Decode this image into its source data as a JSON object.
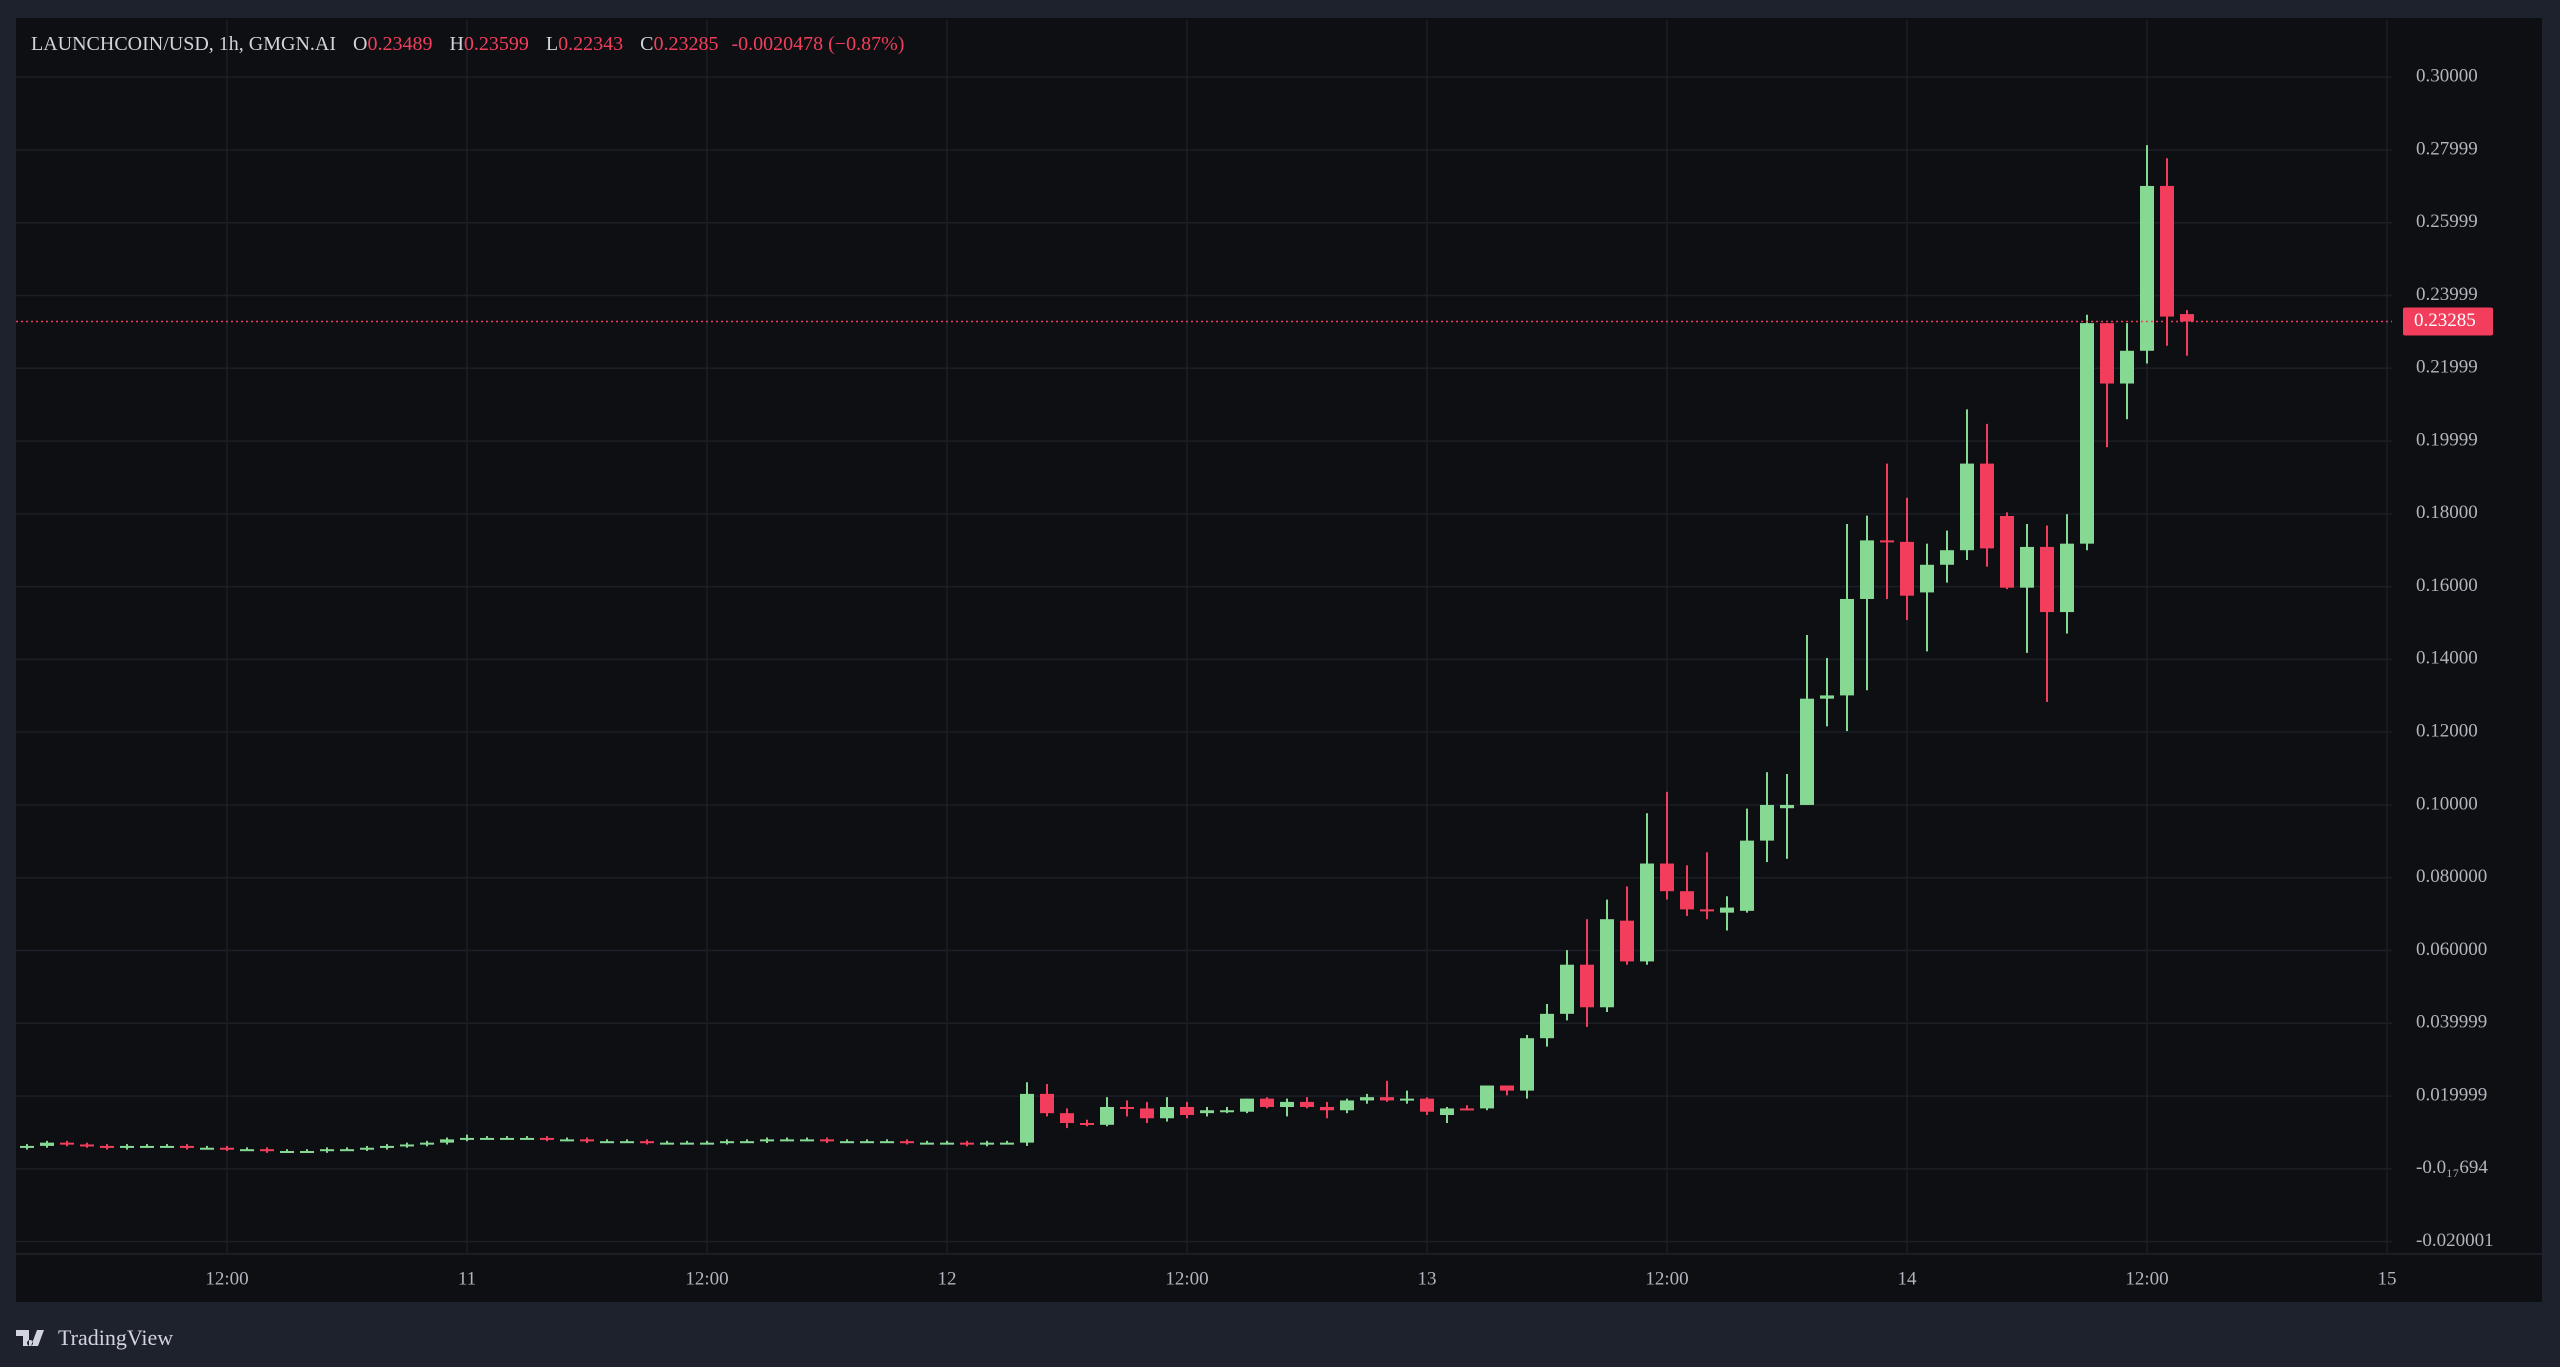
{
  "chart_data": {
    "type": "candlestick",
    "symbol": "LAUNCHCOIN/USD, 1h, GMGN.AI",
    "ohlc_labels": [
      "O",
      "H",
      "L",
      "C"
    ],
    "change": "-0.0020478 (−0.87%)",
    "up_color": "#86d993",
    "down_color": "#f23e5c",
    "grid": true,
    "xlim": [
      1.45,
      120.25
    ],
    "ylim": [
      -0.0234,
      0.3157
    ],
    "xticks": [
      {
        "value": 12,
        "label": "12:00"
      },
      {
        "value": 24,
        "label": "11"
      },
      {
        "value": 36,
        "label": "12:00"
      },
      {
        "value": 48,
        "label": "12"
      },
      {
        "value": 60,
        "label": "12:00"
      },
      {
        "value": 72,
        "label": "13"
      },
      {
        "value": 84,
        "label": "12:00"
      },
      {
        "value": 96,
        "label": "14"
      },
      {
        "value": 108,
        "label": "12:00"
      },
      {
        "value": 120,
        "label": "15"
      }
    ],
    "yticks": [
      {
        "value": 0.3,
        "label": "0.30000"
      },
      0.27999,
      0.25999,
      0.23999,
      0.21999,
      0.19999,
      {
        "value": 0.18,
        "label": "0.18000"
      },
      {
        "value": 0.16,
        "label": "0.16000"
      },
      {
        "value": 0.14,
        "label": "0.14000"
      },
      {
        "value": 0.12,
        "label": "0.12000"
      },
      {
        "value": 0.1,
        "label": "0.10000"
      },
      {
        "value": 0.08,
        "label": "0.080000"
      },
      {
        "value": 0.06,
        "label": "0.060000"
      },
      0.039999,
      0.019999,
      {
        "value": -6.94e-19,
        "label": "-0.0₁₇694"
      },
      -0.020001
    ],
    "x": [
      2,
      3,
      4,
      5,
      6,
      7,
      8,
      9,
      10,
      11,
      12,
      13,
      14,
      15,
      16,
      17,
      18,
      19,
      20,
      21,
      22,
      23,
      24,
      25,
      26,
      27,
      28,
      29,
      30,
      31,
      32,
      33,
      34,
      35,
      36,
      37,
      38,
      39,
      40,
      41,
      42,
      43,
      44,
      45,
      46,
      47,
      48,
      49,
      50,
      51,
      52,
      53,
      54,
      55,
      56,
      57,
      58,
      59,
      60,
      61,
      62,
      63,
      64,
      65,
      66,
      67,
      68,
      69,
      70,
      71,
      72,
      73,
      74,
      75,
      76,
      77,
      78,
      79,
      80,
      81,
      82,
      83,
      84,
      85,
      86,
      87,
      88,
      89,
      90,
      91,
      92,
      93,
      94,
      95,
      96,
      97,
      98,
      99,
      100,
      101,
      102,
      103,
      104,
      105,
      106,
      107,
      108,
      109,
      110
    ],
    "open": [
      0.0058,
      0.0063,
      0.0072,
      0.0067,
      0.0063,
      0.0058,
      0.0063,
      0.0063,
      0.0063,
      0.0058,
      0.0058,
      0.0054,
      0.0054,
      0.0049,
      0.0049,
      0.0049,
      0.0054,
      0.0054,
      0.0058,
      0.0063,
      0.0067,
      0.0072,
      0.0081,
      0.0085,
      0.0085,
      0.0085,
      0.0085,
      0.0081,
      0.0081,
      0.0076,
      0.0076,
      0.0076,
      0.0072,
      0.0072,
      0.0072,
      0.0072,
      0.0076,
      0.0076,
      0.0081,
      0.0081,
      0.0081,
      0.0076,
      0.0076,
      0.0076,
      0.0076,
      0.0072,
      0.0072,
      0.0072,
      0.0067,
      0.0072,
      0.0072,
      0.0206,
      0.0153,
      0.0126,
      0.0121,
      0.017,
      0.0166,
      0.0139,
      0.017,
      0.0153,
      0.0161,
      0.0157,
      0.0193,
      0.017,
      0.0184,
      0.017,
      0.0161,
      0.0188,
      0.0197,
      0.0188,
      0.0193,
      0.0148,
      0.0166,
      0.0166,
      0.0229,
      0.0215,
      0.0359,
      0.0426,
      0.0561,
      0.0444,
      0.0682,
      0.057,
      0.0839,
      0.0763,
      0.0713,
      0.0704,
      0.0709,
      0.0902,
      0.0991,
      0.1,
      0.1292,
      0.1301,
      0.1566,
      0.1727,
      0.1723,
      0.1584,
      0.166,
      0.17,
      0.1938,
      0.1794,
      0.1597,
      0.1709,
      0.153,
      0.1718,
      0.2324,
      0.2158,
      0.2248,
      0.2701,
      0.23489
    ],
    "high": [
      0.0068,
      0.0077,
      0.0077,
      0.0072,
      0.0068,
      0.0068,
      0.0068,
      0.0068,
      0.0068,
      0.0063,
      0.0063,
      0.0059,
      0.0059,
      0.0054,
      0.0054,
      0.0059,
      0.0059,
      0.0063,
      0.0068,
      0.0072,
      0.0077,
      0.0086,
      0.0094,
      0.009,
      0.009,
      0.009,
      0.009,
      0.0086,
      0.0086,
      0.0081,
      0.0081,
      0.0081,
      0.0077,
      0.0077,
      0.0077,
      0.0081,
      0.0081,
      0.0086,
      0.0086,
      0.0086,
      0.0086,
      0.0081,
      0.0081,
      0.0081,
      0.0081,
      0.0077,
      0.0077,
      0.0077,
      0.0077,
      0.0077,
      0.0238,
      0.0233,
      0.0166,
      0.0135,
      0.0197,
      0.0188,
      0.0184,
      0.0197,
      0.0184,
      0.017,
      0.017,
      0.0193,
      0.0197,
      0.0193,
      0.0197,
      0.0184,
      0.0193,
      0.0206,
      0.0242,
      0.0215,
      0.0197,
      0.017,
      0.0175,
      0.0229,
      0.0229,
      0.0368,
      0.0453,
      0.0601,
      0.0686,
      0.074,
      0.0776,
      0.0977,
      0.1036,
      0.0834,
      0.087,
      0.0749,
      0.099,
      0.109,
      0.1085,
      0.1467,
      0.1404,
      0.1772,
      0.1795,
      0.1938,
      0.1844,
      0.1718,
      0.1754,
      0.2087,
      0.2047,
      0.1804,
      0.1772,
      0.1768,
      0.1799,
      0.2347,
      0.2324,
      0.2324,
      0.2813,
      0.2777,
      0.23599
    ],
    "low": [
      0.0053,
      0.0058,
      0.0062,
      0.0058,
      0.0053,
      0.0053,
      0.0058,
      0.0058,
      0.0053,
      0.0053,
      0.0049,
      0.0049,
      0.0044,
      0.0044,
      0.0044,
      0.0044,
      0.0049,
      0.0049,
      0.0053,
      0.0058,
      0.0062,
      0.0067,
      0.0076,
      0.008,
      0.008,
      0.008,
      0.0076,
      0.0076,
      0.0071,
      0.0071,
      0.0071,
      0.0067,
      0.0067,
      0.0067,
      0.0067,
      0.0067,
      0.0071,
      0.0071,
      0.0076,
      0.0076,
      0.0071,
      0.0071,
      0.0071,
      0.0071,
      0.0067,
      0.0067,
      0.0067,
      0.0062,
      0.0062,
      0.0067,
      0.0063,
      0.0144,
      0.0112,
      0.0117,
      0.0117,
      0.0144,
      0.0126,
      0.013,
      0.0139,
      0.0144,
      0.0153,
      0.0153,
      0.0166,
      0.0144,
      0.0166,
      0.0139,
      0.0153,
      0.0179,
      0.0184,
      0.0179,
      0.0148,
      0.0126,
      0.0161,
      0.0161,
      0.0202,
      0.0193,
      0.0336,
      0.0408,
      0.039,
      0.0431,
      0.0561,
      0.0561,
      0.074,
      0.0695,
      0.0686,
      0.0655,
      0.0704,
      0.0843,
      0.0852,
      0.1,
      0.1216,
      0.1203,
      0.1315,
      0.1566,
      0.1508,
      0.1422,
      0.1611,
      0.1673,
      0.1655,
      0.1593,
      0.1418,
      0.1283,
      0.1471,
      0.17,
      0.1983,
      0.206,
      0.2213,
      0.2262,
      0.22343
    ],
    "close": [
      0.0063,
      0.0072,
      0.0067,
      0.0063,
      0.0058,
      0.0063,
      0.0063,
      0.0063,
      0.0058,
      0.0058,
      0.0054,
      0.0054,
      0.0049,
      0.0049,
      0.0049,
      0.0054,
      0.0054,
      0.0058,
      0.0063,
      0.0067,
      0.0072,
      0.0081,
      0.0085,
      0.0085,
      0.0085,
      0.0085,
      0.0081,
      0.0081,
      0.0076,
      0.0076,
      0.0076,
      0.0072,
      0.0072,
      0.0072,
      0.0072,
      0.0076,
      0.0076,
      0.0081,
      0.0081,
      0.0081,
      0.0076,
      0.0076,
      0.0076,
      0.0076,
      0.0072,
      0.0072,
      0.0072,
      0.0067,
      0.0072,
      0.0072,
      0.0206,
      0.0153,
      0.0126,
      0.0121,
      0.017,
      0.0166,
      0.0139,
      0.017,
      0.0148,
      0.0161,
      0.0161,
      0.0193,
      0.017,
      0.0184,
      0.017,
      0.0161,
      0.0188,
      0.0197,
      0.0188,
      0.0193,
      0.0157,
      0.0166,
      0.0161,
      0.0229,
      0.0215,
      0.0359,
      0.0426,
      0.0561,
      0.0444,
      0.0686,
      0.057,
      0.0839,
      0.0763,
      0.0713,
      0.0709,
      0.0718,
      0.0902,
      0.1,
      0.1,
      0.1292,
      0.1301,
      0.1566,
      0.1727,
      0.1723,
      0.1575,
      0.166,
      0.17,
      0.1938,
      0.1705,
      0.1597,
      0.1709,
      0.153,
      0.1718,
      0.2324,
      0.2158,
      0.2248,
      0.2701,
      0.2342,
      0.23285
    ]
  },
  "footer": {
    "brand": "TradingView"
  }
}
